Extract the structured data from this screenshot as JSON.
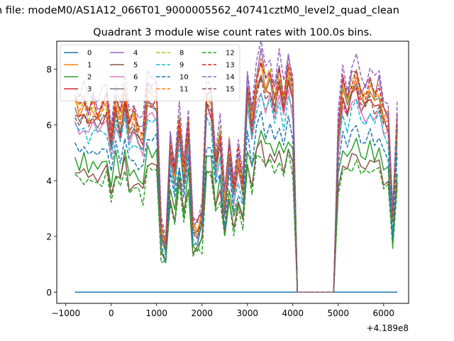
{
  "chart_data": {
    "type": "line",
    "title": "n file: modeM0/AS1A12_066T01_9000005562_40741cztM0_level2_quad_clean",
    "subtitle": "Quadrant 3 module wise count rates with 100.0s bins.",
    "xlabel": "",
    "ylabel": "",
    "x_offset_label": "+4.189e8",
    "xlim": [
      -1200,
      6550
    ],
    "ylim": [
      -0.4,
      9.0
    ],
    "xticks": [
      -1000,
      0,
      1000,
      2000,
      3000,
      4000,
      5000,
      6000
    ],
    "xtick_labels": [
      "−1000",
      "0",
      "1000",
      "2000",
      "3000",
      "4000",
      "5000",
      "6000"
    ],
    "yticks": [
      0,
      2,
      4,
      6,
      8
    ],
    "ytick_labels": [
      "0",
      "2",
      "4",
      "6",
      "8"
    ],
    "grid": false,
    "legend_position": "top-left",
    "legend_columns": 4,
    "x": [
      -800,
      -700,
      -600,
      -500,
      -400,
      -300,
      -200,
      -100,
      0,
      100,
      200,
      300,
      400,
      500,
      600,
      700,
      800,
      900,
      1000,
      1100,
      1200,
      1300,
      1400,
      1500,
      1600,
      1700,
      1800,
      1900,
      2000,
      2100,
      2200,
      2300,
      2400,
      2500,
      2600,
      2700,
      2800,
      2900,
      3000,
      3100,
      3200,
      3300,
      3400,
      3500,
      3600,
      3700,
      3800,
      3900,
      4000,
      4100,
      4200,
      4300,
      4400,
      4500,
      4600,
      4700,
      4800,
      4900,
      5000,
      5100,
      5200,
      5300,
      5400,
      5500,
      5600,
      5700,
      5800,
      5900,
      6000,
      6100,
      6200,
      6300
    ],
    "base_profile": [
      6.5,
      6.2,
      6.4,
      6.0,
      6.3,
      6.0,
      6.2,
      6.4,
      5.3,
      6.5,
      5.8,
      6.8,
      5.6,
      5.9,
      5.5,
      5.3,
      6.8,
      6.9,
      6.7,
      2.0,
      1.5,
      5.0,
      4.0,
      5.8,
      4.0,
      5.7,
      2.3,
      2.1,
      2.6,
      6.6,
      6.5,
      4.4,
      5.3,
      3.0,
      5.0,
      3.5,
      4.5,
      3.6,
      7.0,
      5.8,
      7.2,
      7.8,
      7.0,
      7.4,
      6.5,
      7.4,
      6.5,
      7.6,
      6.8,
      0,
      0,
      0,
      0,
      0,
      0,
      0,
      0,
      0,
      5.5,
      7.0,
      6.5,
      7.1,
      7.2,
      6.7,
      6.6,
      7.0,
      6.6,
      6.9,
      6.0,
      5.9,
      2.5,
      5.8
    ],
    "flat_series_value": 0,
    "legend_label_color": "#000000",
    "series": [
      {
        "name": "0",
        "color": "#1f77b4",
        "dashed": false,
        "kind": "flat"
      },
      {
        "name": "1",
        "color": "#ff7f0e",
        "dashed": false,
        "scale": 1.03,
        "shift": 0.15
      },
      {
        "name": "2",
        "color": "#2ca02c",
        "dashed": false,
        "scale": 0.74,
        "shift": 0
      },
      {
        "name": "3",
        "color": "#d62728",
        "dashed": false,
        "scale": 1.0,
        "shift": 0
      },
      {
        "name": "4",
        "color": "#9467bd",
        "dashed": false,
        "scale": 1.08,
        "shift": 0.1
      },
      {
        "name": "5",
        "color": "#8c564b",
        "dashed": false,
        "scale": 0.68,
        "shift": 0
      },
      {
        "name": "6",
        "color": "#e377c2",
        "dashed": false,
        "scale": 0.96,
        "shift": -0.1
      },
      {
        "name": "7",
        "color": "#7f7f7f",
        "dashed": false,
        "scale": 1.0,
        "shift": 0.05
      },
      {
        "name": "8",
        "color": "#bcbd22",
        "dashed": true,
        "scale": 1.05,
        "shift": 0.1
      },
      {
        "name": "9",
        "color": "#17becf",
        "dashed": true,
        "scale": 0.93,
        "shift": -0.05
      },
      {
        "name": "10",
        "color": "#1f77b4",
        "dashed": true,
        "scale": 0.8,
        "shift": 0.1
      },
      {
        "name": "11",
        "color": "#ff7f0e",
        "dashed": true,
        "scale": 1.02,
        "shift": 0.2
      },
      {
        "name": "12",
        "color": "#2ca02c",
        "dashed": true,
        "scale": 0.65,
        "shift": -0.05
      },
      {
        "name": "13",
        "color": "#d62728",
        "dashed": true,
        "scale": 1.04,
        "shift": 0.25
      },
      {
        "name": "14",
        "color": "#9467bd",
        "dashed": true,
        "scale": 1.12,
        "shift": 0.2
      },
      {
        "name": "15",
        "color": "#8c564b",
        "dashed": true,
        "scale": 0.99,
        "shift": 0.05
      }
    ]
  }
}
